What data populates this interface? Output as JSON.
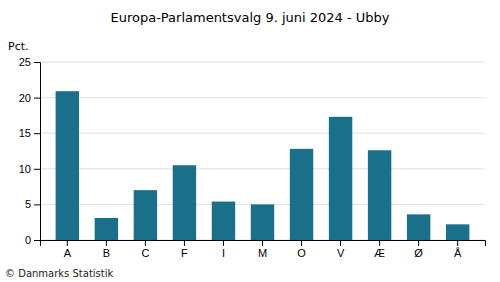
{
  "chart_data": {
    "type": "bar",
    "title": "Europa-Parlamentsvalg 9. juni 2024 - Ubby",
    "categories": [
      "A",
      "B",
      "C",
      "F",
      "I",
      "M",
      "O",
      "V",
      "Æ",
      "Ø",
      "Å"
    ],
    "values": [
      20.9,
      3.1,
      7.0,
      10.5,
      5.4,
      5.0,
      12.8,
      17.3,
      12.6,
      3.6,
      2.2
    ],
    "color": "#1a6f8a",
    "ylim": [
      0,
      25
    ],
    "yticks": [
      0,
      5,
      10,
      15,
      20,
      25
    ],
    "ylabel": "Pct.",
    "footer": "© Danmarks Statistik",
    "grid": true
  }
}
